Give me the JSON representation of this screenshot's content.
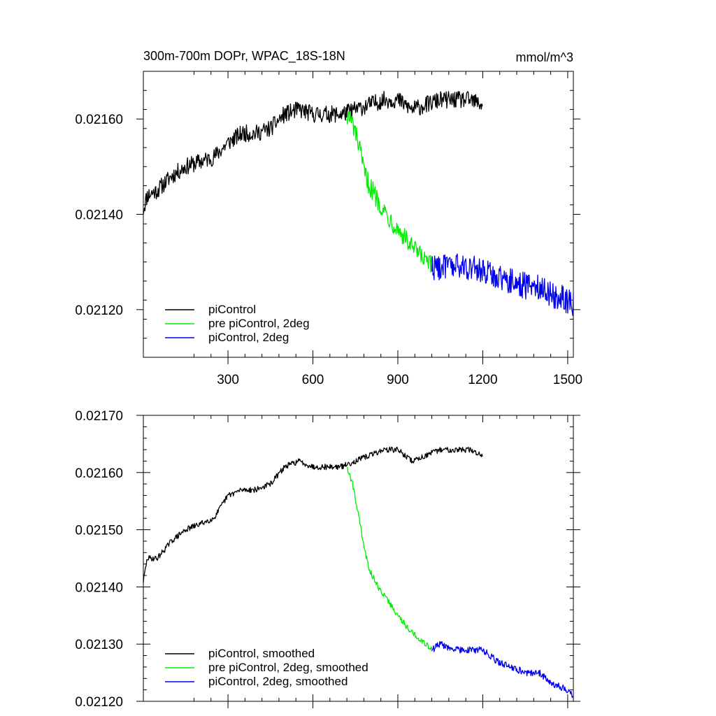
{
  "chart_data": [
    {
      "type": "line",
      "title": "300m-700m DOPr, WPAC_18S-18N",
      "units": "mmol/m^3",
      "xlim": [
        1,
        1520
      ],
      "ylim": [
        0.0211,
        0.0217
      ],
      "xticks": [
        300,
        600,
        900,
        1200,
        1500
      ],
      "yticks": [
        0.0212,
        0.0214,
        0.0216
      ],
      "ytick_labels": [
        "0.02120",
        "0.02140",
        "0.02160"
      ],
      "legend_position": "bottom-left",
      "series": [
        {
          "name": "piControl",
          "color": "#000000",
          "noise": 1.8e-05,
          "x": [
            1,
            15,
            50,
            100,
            150,
            200,
            250,
            300,
            350,
            400,
            450,
            500,
            550,
            600,
            650,
            700,
            750,
            800,
            850,
            900,
            950,
            1000,
            1050,
            1100,
            1150,
            1200
          ],
          "y": [
            0.02141,
            0.02144,
            0.02145,
            0.02148,
            0.0215,
            0.02151,
            0.02152,
            0.02155,
            0.02157,
            0.02157,
            0.02158,
            0.02161,
            0.02162,
            0.02161,
            0.02161,
            0.02161,
            0.02162,
            0.02163,
            0.02164,
            0.02164,
            0.02162,
            0.02163,
            0.02164,
            0.02164,
            0.02164,
            0.02163
          ]
        },
        {
          "name": "pre piControl, 2deg",
          "color": "#00ee00",
          "noise": 2.2e-05,
          "x": [
            720,
            740,
            760,
            780,
            800,
            830,
            860,
            900,
            950,
            1000,
            1020
          ],
          "y": [
            0.02161,
            0.02159,
            0.02155,
            0.02149,
            0.02146,
            0.02143,
            0.0214,
            0.02137,
            0.02133,
            0.0213,
            0.02129
          ]
        },
        {
          "name": "piControl, 2deg",
          "color": "#0000ee",
          "noise": 2.8e-05,
          "x": [
            1020,
            1050,
            1100,
            1150,
            1200,
            1250,
            1300,
            1350,
            1400,
            1450,
            1500,
            1520
          ],
          "y": [
            0.02129,
            0.02129,
            0.02129,
            0.02129,
            0.02128,
            0.02127,
            0.02126,
            0.02125,
            0.02125,
            0.02123,
            0.02122,
            0.02121
          ]
        }
      ]
    },
    {
      "type": "line",
      "title": "",
      "xlim": [
        1,
        1520
      ],
      "ylim": [
        0.0212,
        0.0217
      ],
      "xticks": [
        300,
        600,
        900,
        1200,
        1500
      ],
      "yticks": [
        0.0212,
        0.0213,
        0.0214,
        0.0215,
        0.0216,
        0.0217
      ],
      "ytick_labels": [
        "0.02120",
        "0.02130",
        "0.02140",
        "0.02150",
        "0.02160",
        "0.02170"
      ],
      "legend_position": "bottom-left",
      "series": [
        {
          "name": "piControl, smoothed",
          "color": "#000000",
          "noise": 5e-06,
          "x": [
            1,
            15,
            50,
            100,
            150,
            200,
            250,
            300,
            350,
            400,
            450,
            500,
            550,
            600,
            650,
            700,
            750,
            800,
            850,
            900,
            950,
            1000,
            1050,
            1100,
            1150,
            1200
          ],
          "y": [
            0.02141,
            0.02145,
            0.02145,
            0.02148,
            0.0215,
            0.02151,
            0.02152,
            0.02156,
            0.02157,
            0.02157,
            0.02158,
            0.02161,
            0.02162,
            0.02161,
            0.02161,
            0.02161,
            0.02162,
            0.02163,
            0.02164,
            0.02164,
            0.02162,
            0.02163,
            0.02164,
            0.02164,
            0.02164,
            0.02163
          ]
        },
        {
          "name": "pre piControl, 2deg, smoothed",
          "color": "#00ee00",
          "noise": 5e-06,
          "x": [
            720,
            740,
            760,
            780,
            800,
            830,
            860,
            900,
            950,
            1000,
            1020
          ],
          "y": [
            0.02161,
            0.02158,
            0.02153,
            0.02147,
            0.02143,
            0.0214,
            0.02138,
            0.02135,
            0.02132,
            0.0213,
            0.02129
          ]
        },
        {
          "name": "piControl, 2deg, smoothed",
          "color": "#0000ee",
          "noise": 6e-06,
          "x": [
            1020,
            1050,
            1100,
            1150,
            1200,
            1250,
            1300,
            1350,
            1400,
            1450,
            1500,
            1520
          ],
          "y": [
            0.02129,
            0.0213,
            0.02129,
            0.02129,
            0.02129,
            0.02127,
            0.02126,
            0.02125,
            0.02125,
            0.02123,
            0.02122,
            0.02121
          ]
        }
      ]
    }
  ]
}
